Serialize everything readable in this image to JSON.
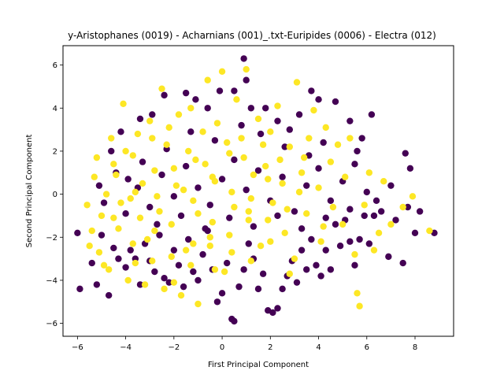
{
  "chart_data": {
    "type": "scatter",
    "title": "y-Aristophanes (0019) - Acharnians (001)_.txt-Euripides (0006) - Electra (012)",
    "xlabel": "First Principal Component",
    "ylabel": "Second Principal Component",
    "xlim": [
      -6.6,
      9.6
    ],
    "ylim": [
      -6.6,
      6.9
    ],
    "xticks": [
      -6,
      -4,
      -2,
      0,
      2,
      4,
      6,
      8
    ],
    "yticks": [
      -6,
      -4,
      -2,
      0,
      2,
      4,
      6
    ],
    "xtick_labels": [
      "−6",
      "−4",
      "−2",
      "0",
      "2",
      "4",
      "6",
      "8"
    ],
    "ytick_labels": [
      "−6",
      "−4",
      "−2",
      "0",
      "2",
      "4",
      "6"
    ],
    "grid": false,
    "legend": "none",
    "series": [
      {
        "color": "#440154",
        "points": [
          [
            -6.0,
            -1.8
          ],
          [
            -5.9,
            -4.4
          ],
          [
            -5.2,
            -4.2
          ],
          [
            -5.4,
            -3.2
          ],
          [
            -5.0,
            -1.9
          ],
          [
            -4.7,
            -4.7
          ],
          [
            -4.5,
            -2.5
          ],
          [
            -4.3,
            -3.0
          ],
          [
            -4.0,
            -3.4
          ],
          [
            -3.8,
            -2.6
          ],
          [
            -3.6,
            -3.0
          ],
          [
            -3.4,
            -4.2
          ],
          [
            -3.2,
            -2.3
          ],
          [
            -3.0,
            -3.1
          ],
          [
            -2.8,
            -3.6
          ],
          [
            -2.6,
            -1.9
          ],
          [
            -2.4,
            -3.9
          ],
          [
            -2.2,
            -4.1
          ],
          [
            -2.0,
            -2.6
          ],
          [
            -1.8,
            -3.3
          ],
          [
            -1.6,
            -4.3
          ],
          [
            -1.4,
            -2.1
          ],
          [
            -1.2,
            -3.6
          ],
          [
            -1.0,
            -4.0
          ],
          [
            -0.8,
            -2.8
          ],
          [
            -0.6,
            -1.7
          ],
          [
            -0.4,
            -3.5
          ],
          [
            -0.2,
            -5.0
          ],
          [
            0.0,
            -4.6
          ],
          [
            0.2,
            -3.2
          ],
          [
            0.4,
            -5.8
          ],
          [
            0.5,
            -5.9
          ],
          [
            0.7,
            -4.3
          ],
          [
            0.9,
            -3.5
          ],
          [
            1.1,
            -2.3
          ],
          [
            1.3,
            -3.0
          ],
          [
            1.5,
            -4.4
          ],
          [
            1.7,
            -3.7
          ],
          [
            1.9,
            -5.4
          ],
          [
            2.1,
            -5.5
          ],
          [
            2.3,
            -5.3
          ],
          [
            2.5,
            -4.4
          ],
          [
            2.7,
            -3.8
          ],
          [
            2.9,
            -3.1
          ],
          [
            3.1,
            -4.1
          ],
          [
            3.3,
            -2.6
          ],
          [
            3.5,
            -3.5
          ],
          [
            3.7,
            -2.1
          ],
          [
            3.9,
            -3.3
          ],
          [
            4.1,
            -3.8
          ],
          [
            4.3,
            -2.6
          ],
          [
            4.5,
            -3.5
          ],
          [
            4.7,
            -1.4
          ],
          [
            4.9,
            -2.4
          ],
          [
            5.1,
            -1.2
          ],
          [
            5.3,
            -2.2
          ],
          [
            5.5,
            -3.3
          ],
          [
            5.7,
            -2.1
          ],
          [
            5.9,
            -1.0
          ],
          [
            6.1,
            -2.3
          ],
          [
            6.3,
            -1.0
          ],
          [
            6.6,
            -0.8
          ],
          [
            6.9,
            -2.9
          ],
          [
            7.2,
            -1.2
          ],
          [
            7.5,
            -3.2
          ],
          [
            7.7,
            -0.6
          ],
          [
            8.0,
            -1.8
          ],
          [
            8.2,
            -0.8
          ],
          [
            8.8,
            -1.8
          ],
          [
            7.6,
            1.9
          ],
          [
            7.8,
            1.2
          ],
          [
            6.2,
            3.7
          ],
          [
            5.8,
            2.6
          ],
          [
            5.3,
            3.4
          ],
          [
            4.7,
            4.3
          ],
          [
            4.0,
            4.4
          ],
          [
            3.7,
            4.8
          ],
          [
            3.2,
            3.7
          ],
          [
            2.8,
            3.0
          ],
          [
            2.3,
            3.4
          ],
          [
            1.8,
            4.0
          ],
          [
            1.2,
            4.0
          ],
          [
            1.0,
            5.3
          ],
          [
            0.9,
            6.3
          ],
          [
            0.5,
            4.8
          ],
          [
            -0.1,
            4.8
          ],
          [
            -0.6,
            4.0
          ],
          [
            -1.1,
            4.4
          ],
          [
            -1.5,
            4.7
          ],
          [
            -2.4,
            4.6
          ],
          [
            -2.9,
            3.7
          ],
          [
            -3.4,
            3.5
          ],
          [
            -4.2,
            2.9
          ],
          [
            -4.6,
            2.0
          ],
          [
            -4.4,
            1.0
          ],
          [
            -5.1,
            0.4
          ],
          [
            -4.9,
            -0.4
          ],
          [
            -4.0,
            -0.9
          ],
          [
            -3.5,
            0.3
          ],
          [
            -3.0,
            -0.6
          ],
          [
            -2.5,
            0.9
          ],
          [
            -2.0,
            -0.1
          ],
          [
            -1.5,
            1.3
          ],
          [
            -1.0,
            0.3
          ],
          [
            -0.5,
            -0.5
          ],
          [
            0.0,
            0.7
          ],
          [
            0.5,
            1.6
          ],
          [
            1.0,
            0.2
          ],
          [
            1.5,
            1.1
          ],
          [
            2.0,
            -0.3
          ],
          [
            2.5,
            0.8
          ],
          [
            3.0,
            -0.8
          ],
          [
            3.5,
            0.4
          ],
          [
            4.0,
            1.2
          ],
          [
            4.5,
            -0.3
          ],
          [
            5.0,
            0.6
          ],
          [
            5.5,
            1.4
          ],
          [
            6.0,
            0.1
          ],
          [
            4.2,
            2.4
          ],
          [
            3.6,
            1.8
          ],
          [
            2.6,
            2.2
          ],
          [
            1.6,
            2.8
          ],
          [
            0.8,
            3.2
          ],
          [
            -0.3,
            2.5
          ],
          [
            -1.3,
            2.9
          ],
          [
            -2.3,
            2.1
          ],
          [
            -3.3,
            1.5
          ],
          [
            -3.9,
            0.7
          ],
          [
            -2.7,
            -1.4
          ],
          [
            -1.7,
            -1.0
          ],
          [
            -0.7,
            -1.6
          ],
          [
            0.3,
            -1.1
          ],
          [
            1.3,
            -1.5
          ],
          [
            2.3,
            -1.0
          ],
          [
            3.3,
            -1.6
          ],
          [
            4.3,
            -1.1
          ],
          [
            5.3,
            -0.7
          ],
          [
            6.4,
            -0.3
          ],
          [
            7.0,
            0.4
          ],
          [
            5.6,
            2.0
          ]
        ]
      },
      {
        "color": "#fde725",
        "points": [
          [
            -5.6,
            -0.5
          ],
          [
            -5.5,
            -2.4
          ],
          [
            -5.3,
            0.8
          ],
          [
            -5.2,
            1.7
          ],
          [
            -5.0,
            -1.0
          ],
          [
            -4.8,
            0.0
          ],
          [
            -4.7,
            -3.5
          ],
          [
            -4.5,
            1.4
          ],
          [
            -4.3,
            -1.6
          ],
          [
            -4.1,
            4.2
          ],
          [
            -4.0,
            2.0
          ],
          [
            -3.8,
            -0.2
          ],
          [
            -3.6,
            -3.2
          ],
          [
            -3.5,
            2.8
          ],
          [
            -3.3,
            0.5
          ],
          [
            -3.1,
            -2.1
          ],
          [
            -3.0,
            3.4
          ],
          [
            -2.8,
            1.1
          ],
          [
            -2.6,
            -0.8
          ],
          [
            -2.5,
            4.9
          ],
          [
            -2.3,
            2.3
          ],
          [
            -2.1,
            -1.4
          ],
          [
            -2.0,
            -4.1
          ],
          [
            -1.8,
            3.7
          ],
          [
            -1.6,
            0.2
          ],
          [
            -1.5,
            -2.6
          ],
          [
            -1.3,
            4.0
          ],
          [
            -1.1,
            1.6
          ],
          [
            -1.0,
            -0.9
          ],
          [
            -0.8,
            2.9
          ],
          [
            -0.6,
            5.3
          ],
          [
            -0.5,
            -2.0
          ],
          [
            -0.3,
            0.6
          ],
          [
            -0.2,
            3.3
          ],
          [
            0.0,
            5.7
          ],
          [
            0.1,
            -3.6
          ],
          [
            0.3,
            1.9
          ],
          [
            0.5,
            -0.6
          ],
          [
            0.6,
            4.4
          ],
          [
            0.8,
            2.6
          ],
          [
            1.0,
            5.8
          ],
          [
            1.1,
            -1.2
          ],
          [
            1.3,
            0.9
          ],
          [
            1.5,
            3.5
          ],
          [
            1.6,
            -2.4
          ],
          [
            1.8,
            1.3
          ],
          [
            2.0,
            2.9
          ],
          [
            2.1,
            -0.4
          ],
          [
            2.3,
            4.1
          ],
          [
            2.5,
            0.5
          ],
          [
            2.6,
            -1.8
          ],
          [
            2.8,
            2.2
          ],
          [
            3.0,
            -3.0
          ],
          [
            3.1,
            5.2
          ],
          [
            3.3,
            1.0
          ],
          [
            3.5,
            -0.9
          ],
          [
            3.6,
            2.6
          ],
          [
            3.8,
            3.9
          ],
          [
            4.0,
            0.3
          ],
          [
            4.1,
            -2.2
          ],
          [
            4.3,
            3.1
          ],
          [
            4.5,
            1.5
          ],
          [
            4.6,
            -0.6
          ],
          [
            4.8,
            2.3
          ],
          [
            5.0,
            -1.4
          ],
          [
            5.1,
            0.8
          ],
          [
            5.3,
            2.6
          ],
          [
            5.5,
            -2.8
          ],
          [
            5.6,
            -4.6
          ],
          [
            5.7,
            -5.2
          ],
          [
            5.9,
            -0.5
          ],
          [
            6.1,
            1.0
          ],
          [
            6.3,
            -2.6
          ],
          [
            6.5,
            -1.8
          ],
          [
            6.7,
            0.6
          ],
          [
            7.0,
            -1.4
          ],
          [
            7.5,
            -0.6
          ],
          [
            7.9,
            -0.1
          ],
          [
            8.6,
            -1.7
          ],
          [
            -3.9,
            -4.0
          ],
          [
            -3.2,
            -4.2
          ],
          [
            -2.4,
            -4.4
          ],
          [
            -1.7,
            -4.7
          ],
          [
            -1.0,
            -5.1
          ],
          [
            -0.3,
            -3.5
          ],
          [
            -4.9,
            -3.3
          ],
          [
            -5.4,
            -1.7
          ],
          [
            -4.6,
            2.6
          ],
          [
            -3.7,
            1.8
          ],
          [
            -2.9,
            2.6
          ],
          [
            -2.2,
            3.1
          ],
          [
            -1.4,
            2.0
          ],
          [
            -0.7,
            1.4
          ],
          [
            0.2,
            2.4
          ],
          [
            0.9,
            1.7
          ],
          [
            1.7,
            2.3
          ],
          [
            2.4,
            1.6
          ],
          [
            3.2,
            0.1
          ],
          [
            -4.2,
            -0.4
          ],
          [
            -3.4,
            -1.1
          ],
          [
            -2.7,
            -0.1
          ],
          [
            -1.9,
            0.4
          ],
          [
            -1.2,
            -0.3
          ],
          [
            -0.4,
            0.8
          ],
          [
            0.4,
            0.1
          ],
          [
            1.2,
            -0.2
          ],
          [
            1.9,
            0.7
          ],
          [
            2.7,
            -0.7
          ],
          [
            3.4,
            1.7
          ],
          [
            4.2,
            -1.5
          ],
          [
            -4.4,
            0.9
          ],
          [
            -3.6,
            0.1
          ],
          [
            -2.8,
            -1.7
          ],
          [
            -2.0,
            1.2
          ],
          [
            -1.2,
            -2.3
          ],
          [
            -0.4,
            -1.3
          ],
          [
            0.4,
            -2.7
          ],
          [
            1.2,
            -3.1
          ],
          [
            2.0,
            -2.2
          ],
          [
            2.8,
            -3.7
          ],
          [
            -5.1,
            -2.7
          ],
          [
            -4.5,
            -1.1
          ],
          [
            -3.7,
            -2.3
          ],
          [
            -2.9,
            -3.1
          ],
          [
            -2.1,
            -2.9
          ],
          [
            -1.3,
            -3.3
          ],
          [
            -0.5,
            -2.4
          ],
          [
            0.3,
            -1.9
          ],
          [
            1.1,
            -0.8
          ],
          [
            1.9,
            -1.2
          ]
        ]
      }
    ]
  }
}
